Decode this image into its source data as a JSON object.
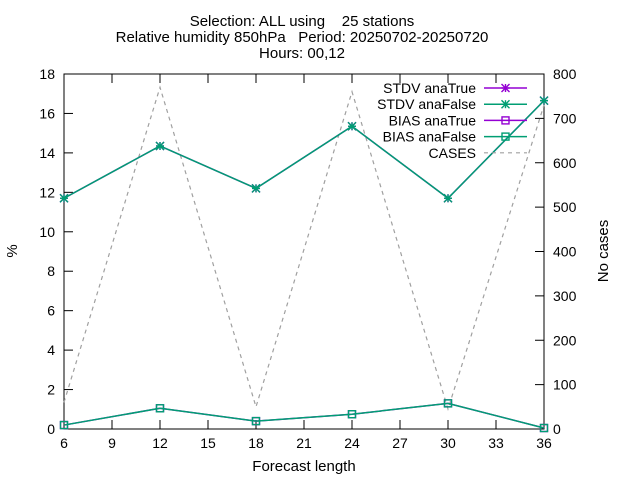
{
  "chart_data": {
    "type": "line",
    "title_lines": [
      "Selection: ALL using    25 stations",
      "Relative humidity 850hPa   Period: 20250702-20250720",
      "Hours: 00,12"
    ],
    "xlabel": "Forecast length",
    "ylabel": "%",
    "y2label": "No cases",
    "xlim": [
      6,
      36
    ],
    "ylim": [
      0,
      18
    ],
    "y2lim": [
      0,
      800
    ],
    "xticks": [
      6,
      9,
      12,
      15,
      18,
      21,
      24,
      27,
      30,
      33,
      36
    ],
    "yticks": [
      0,
      2,
      4,
      6,
      8,
      10,
      12,
      14,
      16,
      18
    ],
    "y2ticks": [
      0,
      100,
      200,
      300,
      400,
      500,
      600,
      700,
      800
    ],
    "grid": false,
    "legend_position": "top-right",
    "x": [
      6,
      12,
      18,
      24,
      30,
      36
    ],
    "series": [
      {
        "name": "STDV anaTrue",
        "axis": "y",
        "color": "#9400d3",
        "marker": "star",
        "dash": "solid",
        "values": [
          11.7,
          14.35,
          12.2,
          15.35,
          11.7,
          16.65
        ]
      },
      {
        "name": "STDV anaFalse",
        "axis": "y",
        "color": "#009e73",
        "marker": "star",
        "dash": "solid",
        "values": [
          11.7,
          14.35,
          12.2,
          15.35,
          11.7,
          16.65
        ]
      },
      {
        "name": "BIAS anaTrue",
        "axis": "y",
        "color": "#9400d3",
        "marker": "square",
        "dash": "solid",
        "values": [
          0.2,
          1.05,
          0.4,
          0.75,
          1.3,
          0.05
        ]
      },
      {
        "name": "BIAS anaFalse",
        "axis": "y",
        "color": "#009e73",
        "marker": "square",
        "dash": "solid",
        "values": [
          0.2,
          1.05,
          0.4,
          0.75,
          1.3,
          0.05
        ]
      },
      {
        "name": "CASES",
        "axis": "y2",
        "color": "#a0a0a0",
        "marker": "none",
        "dash": "dashed",
        "values": [
          60,
          770,
          50,
          760,
          45,
          730
        ]
      }
    ]
  }
}
